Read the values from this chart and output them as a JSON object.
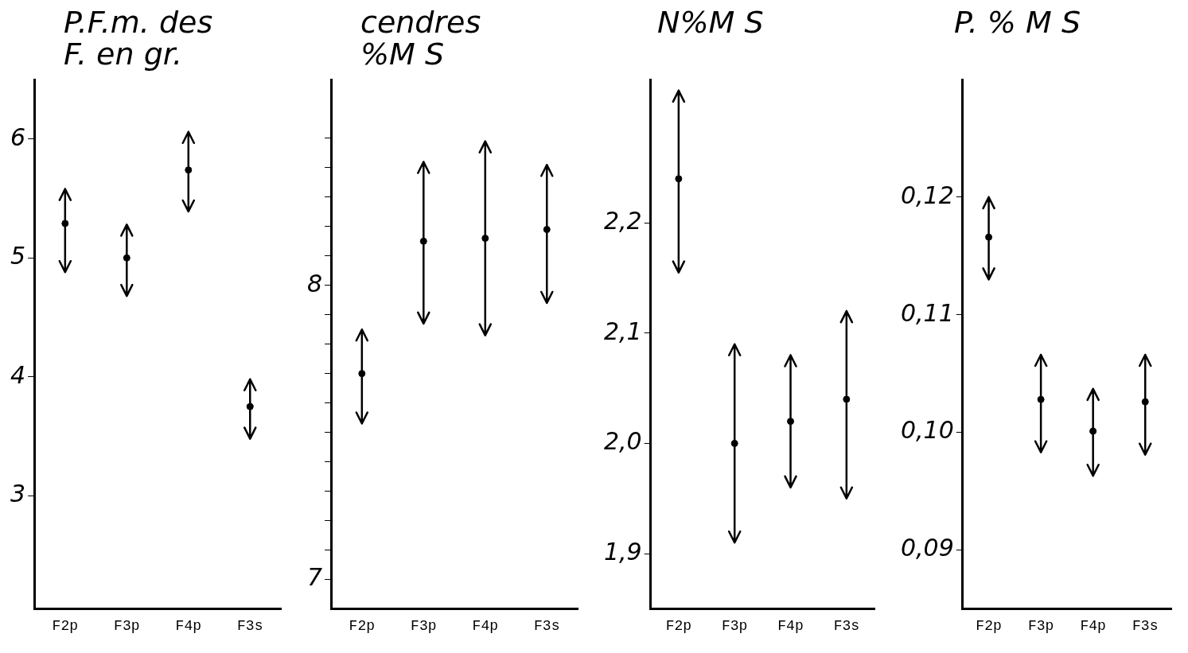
{
  "chart_data": [
    {
      "type": "scatter",
      "title": "P.F.m. des F. en gr.",
      "categories": [
        "F2p",
        "F3p",
        "F4p",
        "F3s"
      ],
      "values": [
        5.29,
        5.0,
        5.74,
        3.75
      ],
      "errors": [
        [
          4.88,
          5.58
        ],
        [
          4.68,
          5.28
        ],
        [
          5.39,
          6.06
        ],
        [
          3.48,
          3.98
        ]
      ],
      "color": "#000000",
      "marker": "circle",
      "ylim": [
        2.05,
        6.5
      ],
      "yticks": [
        3,
        4,
        5,
        6
      ]
    },
    {
      "type": "scatter",
      "title": "cendres %M S",
      "categories": [
        "F2p",
        "F3p",
        "F4p",
        "F3s"
      ],
      "values": [
        7.7,
        8.15,
        8.16,
        8.19
      ],
      "errors": [
        [
          7.53,
          7.85
        ],
        [
          7.87,
          8.42
        ],
        [
          7.83,
          8.49
        ],
        [
          7.94,
          8.41
        ]
      ],
      "color": "#000000",
      "marker": "circle",
      "ylim": [
        6.9,
        8.7
      ],
      "yticks": [
        7,
        {
          "value": 7.1,
          "label": null
        },
        {
          "value": 7.2,
          "label": null
        },
        {
          "value": 7.3,
          "label": null
        },
        {
          "value": 7.4,
          "label": null
        },
        {
          "value": 7.5,
          "label": null
        },
        {
          "value": 7.6,
          "label": null
        },
        {
          "value": 7.7,
          "label": null
        },
        {
          "value": 7.8,
          "label": null
        },
        {
          "value": 7.9,
          "label": null
        },
        8,
        {
          "value": 8.1,
          "label": null
        },
        {
          "value": 8.2,
          "label": null
        },
        {
          "value": 8.3,
          "label": null
        },
        {
          "value": 8.4,
          "label": null
        },
        {
          "value": 8.5,
          "label": null
        }
      ]
    },
    {
      "type": "scatter",
      "title": "N%M S",
      "categories": [
        "F2p",
        "F3p",
        "F4p",
        "F3s"
      ],
      "values": [
        2.24,
        2.0,
        2.02,
        2.04
      ],
      "errors": [
        [
          2.155,
          2.32
        ],
        [
          1.91,
          2.09
        ],
        [
          1.96,
          2.08
        ],
        [
          1.95,
          2.12
        ]
      ],
      "color": "#000000",
      "marker": "circle",
      "ylim": [
        1.85,
        2.33
      ],
      "yticks": [
        {
          "value": 1.9,
          "label": "1,9"
        },
        {
          "value": 2.0,
          "label": "2,0"
        },
        {
          "value": 2.1,
          "label": "2,1"
        },
        {
          "value": 2.2,
          "label": "2,2"
        }
      ]
    },
    {
      "type": "scatter",
      "title": "P. % M S",
      "categories": [
        "F2p",
        "F3p",
        "F4p",
        "F3s"
      ],
      "values": [
        0.1166,
        0.1028,
        0.1001,
        0.1026
      ],
      "errors": [
        [
          0.113,
          0.12
        ],
        [
          0.0983,
          0.1066
        ],
        [
          0.0963,
          0.1037
        ],
        [
          0.0981,
          0.1066
        ]
      ],
      "color": "#000000",
      "marker": "circle",
      "ylim": [
        0.085,
        0.13
      ],
      "yticks": [
        {
          "value": 0.09,
          "label": "0,09"
        },
        {
          "value": 0.1,
          "label": "0,10"
        },
        {
          "value": 0.11,
          "label": "0,11"
        },
        {
          "value": 0.12,
          "label": "0,12"
        }
      ]
    }
  ]
}
